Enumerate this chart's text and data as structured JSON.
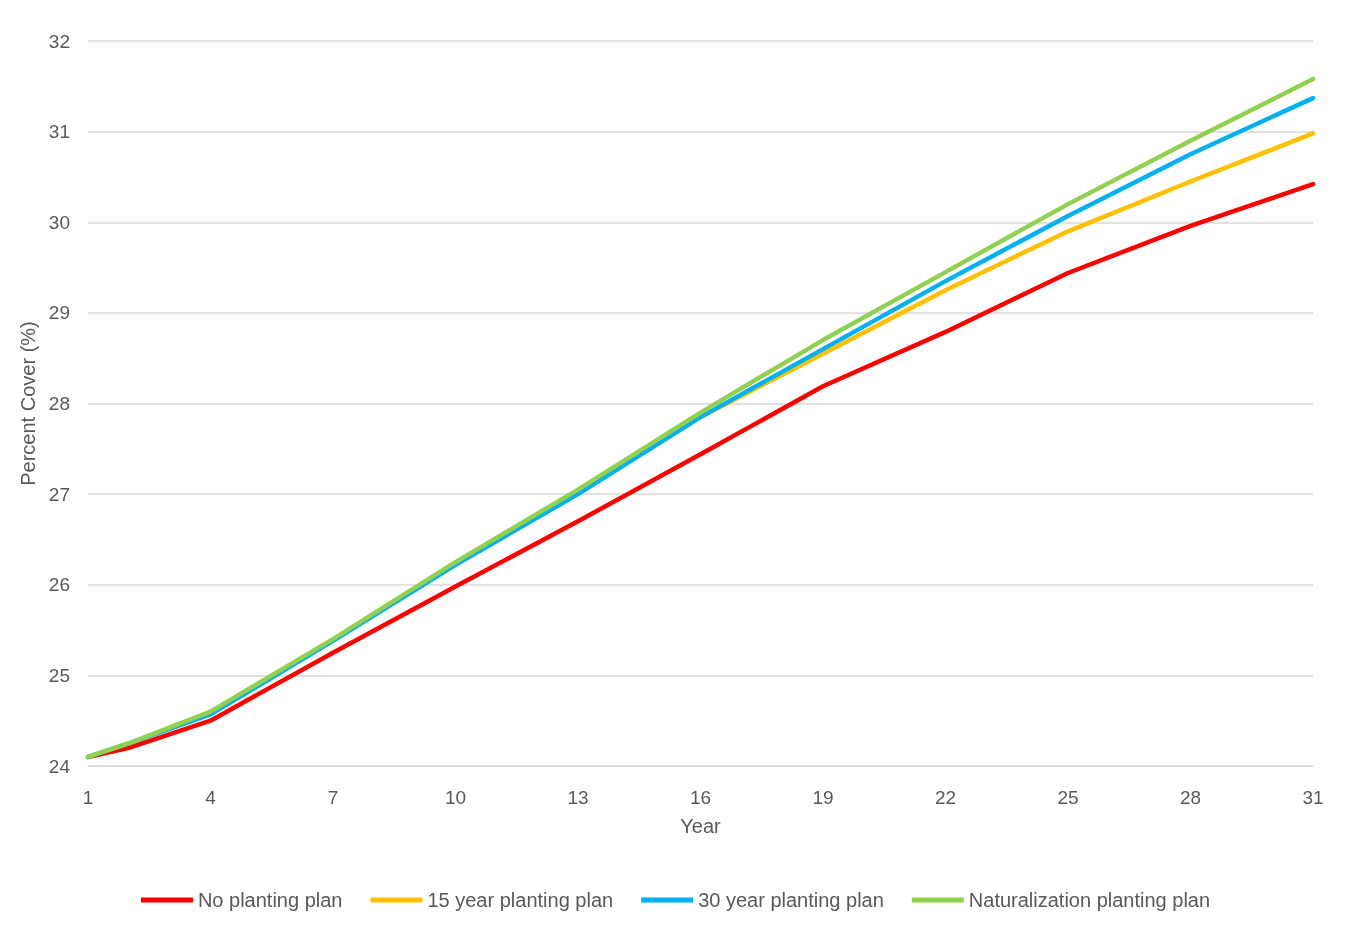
{
  "chart_data": {
    "type": "line",
    "xlabel": "Year",
    "ylabel": "Percent Cover (%)",
    "x": [
      1,
      2,
      4,
      7,
      10,
      13,
      16,
      19,
      22,
      25,
      28,
      31
    ],
    "series": [
      {
        "name": "No planting plan",
        "color": "#ff0000",
        "values": [
          24.1,
          24.2,
          24.5,
          25.25,
          25.98,
          26.7,
          27.44,
          28.19,
          28.79,
          29.44,
          29.96,
          30.42
        ]
      },
      {
        "name": "15 year planting plan",
        "color": "#ffc000",
        "values": [
          null,
          null,
          null,
          null,
          null,
          27.02,
          27.85,
          28.55,
          29.25,
          29.9,
          30.45,
          30.98
        ]
      },
      {
        "name": "30 year planting plan",
        "color": "#00b0f0",
        "values": [
          24.1,
          24.25,
          24.57,
          25.38,
          26.22,
          27.0,
          27.85,
          28.6,
          29.35,
          30.07,
          30.75,
          31.37
        ]
      },
      {
        "name": "Naturalization planting plan",
        "color": "#92d050",
        "values": [
          24.1,
          24.25,
          24.6,
          25.4,
          26.25,
          27.05,
          27.9,
          28.7,
          29.45,
          30.2,
          30.9,
          31.58
        ]
      }
    ],
    "xlim": [
      1,
      31
    ],
    "xticks": [
      1,
      4,
      7,
      10,
      13,
      16,
      19,
      22,
      25,
      28,
      31
    ],
    "ylim": [
      24,
      32
    ],
    "yticks": [
      24,
      25,
      26,
      27,
      28,
      29,
      30,
      31,
      32
    ],
    "grid": "y",
    "legend": "bottom",
    "marker": "none",
    "line_style": "solid"
  }
}
